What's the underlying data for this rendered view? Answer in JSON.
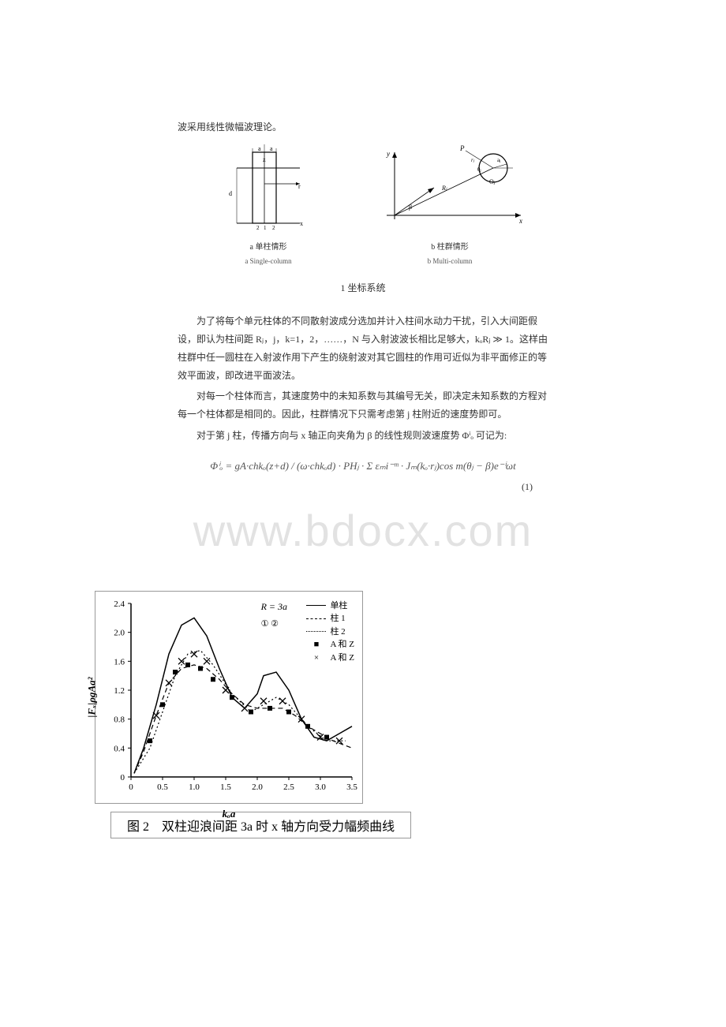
{
  "text": {
    "intro": "波采用线性微幅波理论。",
    "fig1_left_caption": "a  单柱情形",
    "fig1_left_sub": "a  Single-column",
    "fig1_right_caption": "b  柱群情形",
    "fig1_right_sub": "b  Multi-column",
    "fig1_title": "1  坐标系统",
    "para1": "为了将每个单元柱体的不同散射波成分选加并计入柱间水动力干扰，引入大间距假设，即认为柱间距 Rⱼ，j，k=1，2，……，N 与入射波波长相比足够大，kₒRⱼ ≫ 1。这样由柱群中任一圆柱在入射波作用下产生的绕射波对其它圆柱的作用可近似为非平面修正的等效平面波，即改进平面波法。",
    "para2": "对每一个柱体而言，其速度势中的未知系数与其编号无关，即决定未知系数的方程对每一个柱体都是相同的。因此，柱群情况下只需考虑第 j 柱附近的速度势即可。",
    "para3": "对于第 j 柱，传播方向与 x 轴正向夹角为 β 的线性规则波速度势 Φⁱₒ 可记为:",
    "equation": "Φⁱₒ = gA·chkₒ(z+d) / (ω·chkₒd) · PHⱼ · Σ εₘi⁻ᵐ · Jₘ(kₒ·rⱼ)cos m(θⱼ − β)e⁻ⁱωt",
    "eq_number": "(1)",
    "fig2_caption": "图 2　双柱迎浪间距 3a 时 x 轴方向受力幅频曲线",
    "watermark": "www.bdocx.com"
  },
  "fig1_left": {
    "labels": [
      "a",
      "z",
      "r",
      "x",
      "d",
      "1",
      "2"
    ]
  },
  "fig1_right": {
    "labels": [
      "y",
      "P",
      "rⱼ",
      "θⱼ",
      "Rⱼ",
      "β",
      "Oⱼ",
      "aⱼ",
      "x"
    ]
  },
  "chart": {
    "type": "line",
    "ylabel": "|Fₓ|ρgAa²",
    "xlabel": "kₒa",
    "ylim": [
      0,
      2.4
    ],
    "xlim": [
      0,
      3.5
    ],
    "yticks": [
      0,
      0.4,
      0.8,
      1.2,
      1.6,
      2.0,
      2.4
    ],
    "xticks": [
      0,
      0.5,
      1.0,
      1.5,
      2.0,
      2.5,
      3.0,
      3.5
    ],
    "legend_header": "R = 3a",
    "legend_circles": "①  ②",
    "series": [
      {
        "name": "单柱",
        "style": "solid",
        "marker": ""
      },
      {
        "name": "柱 1",
        "style": "dashed",
        "marker": ""
      },
      {
        "name": "柱 2",
        "style": "dotted",
        "marker": ""
      },
      {
        "name": "A 和 Z",
        "style": "",
        "marker": "■"
      },
      {
        "name": "A 和 Z",
        "style": "",
        "marker": "×"
      }
    ],
    "curve_main": [
      [
        0.05,
        0.05
      ],
      [
        0.2,
        0.4
      ],
      [
        0.4,
        1.0
      ],
      [
        0.6,
        1.7
      ],
      [
        0.8,
        2.1
      ],
      [
        1.0,
        2.2
      ],
      [
        1.2,
        1.95
      ],
      [
        1.4,
        1.5
      ],
      [
        1.6,
        1.1
      ],
      [
        1.8,
        0.95
      ],
      [
        2.0,
        1.15
      ],
      [
        2.1,
        1.4
      ],
      [
        2.3,
        1.45
      ],
      [
        2.5,
        1.2
      ],
      [
        2.7,
        0.8
      ],
      [
        2.9,
        0.55
      ],
      [
        3.1,
        0.5
      ],
      [
        3.3,
        0.6
      ],
      [
        3.5,
        0.7
      ]
    ],
    "curve_dashed": [
      [
        0.05,
        0.05
      ],
      [
        0.2,
        0.35
      ],
      [
        0.4,
        0.85
      ],
      [
        0.6,
        1.3
      ],
      [
        0.8,
        1.5
      ],
      [
        1.0,
        1.55
      ],
      [
        1.2,
        1.5
      ],
      [
        1.4,
        1.35
      ],
      [
        1.6,
        1.15
      ],
      [
        1.8,
        1.0
      ],
      [
        2.0,
        0.95
      ],
      [
        2.2,
        0.95
      ],
      [
        2.4,
        0.95
      ],
      [
        2.6,
        0.85
      ],
      [
        2.8,
        0.7
      ],
      [
        3.0,
        0.6
      ],
      [
        3.2,
        0.5
      ],
      [
        3.5,
        0.4
      ]
    ],
    "curve_dotted": [
      [
        0.05,
        0.05
      ],
      [
        0.3,
        0.4
      ],
      [
        0.5,
        0.9
      ],
      [
        0.7,
        1.4
      ],
      [
        0.9,
        1.7
      ],
      [
        1.1,
        1.75
      ],
      [
        1.3,
        1.55
      ],
      [
        1.6,
        1.15
      ],
      [
        1.9,
        0.9
      ],
      [
        2.1,
        1.0
      ],
      [
        2.3,
        1.1
      ],
      [
        2.5,
        1.0
      ],
      [
        2.8,
        0.7
      ],
      [
        3.1,
        0.5
      ],
      [
        3.4,
        0.5
      ]
    ],
    "markers_sq": [
      [
        0.3,
        0.5
      ],
      [
        0.5,
        1.0
      ],
      [
        0.7,
        1.45
      ],
      [
        0.9,
        1.55
      ],
      [
        1.1,
        1.5
      ],
      [
        1.3,
        1.35
      ],
      [
        1.6,
        1.1
      ],
      [
        1.9,
        0.9
      ],
      [
        2.2,
        0.95
      ],
      [
        2.5,
        0.9
      ],
      [
        2.8,
        0.7
      ],
      [
        3.1,
        0.55
      ]
    ],
    "markers_x": [
      [
        0.4,
        0.85
      ],
      [
        0.6,
        1.3
      ],
      [
        0.8,
        1.6
      ],
      [
        1.0,
        1.7
      ],
      [
        1.2,
        1.6
      ],
      [
        1.5,
        1.2
      ],
      [
        1.8,
        0.95
      ],
      [
        2.1,
        1.05
      ],
      [
        2.4,
        1.05
      ],
      [
        2.7,
        0.8
      ],
      [
        3.0,
        0.55
      ],
      [
        3.3,
        0.5
      ]
    ],
    "colors": {
      "axis": "#000000",
      "solid": "#000000",
      "dashed": "#000000",
      "dotted": "#000000",
      "marker_sq": "#000000",
      "marker_x": "#000000"
    }
  }
}
